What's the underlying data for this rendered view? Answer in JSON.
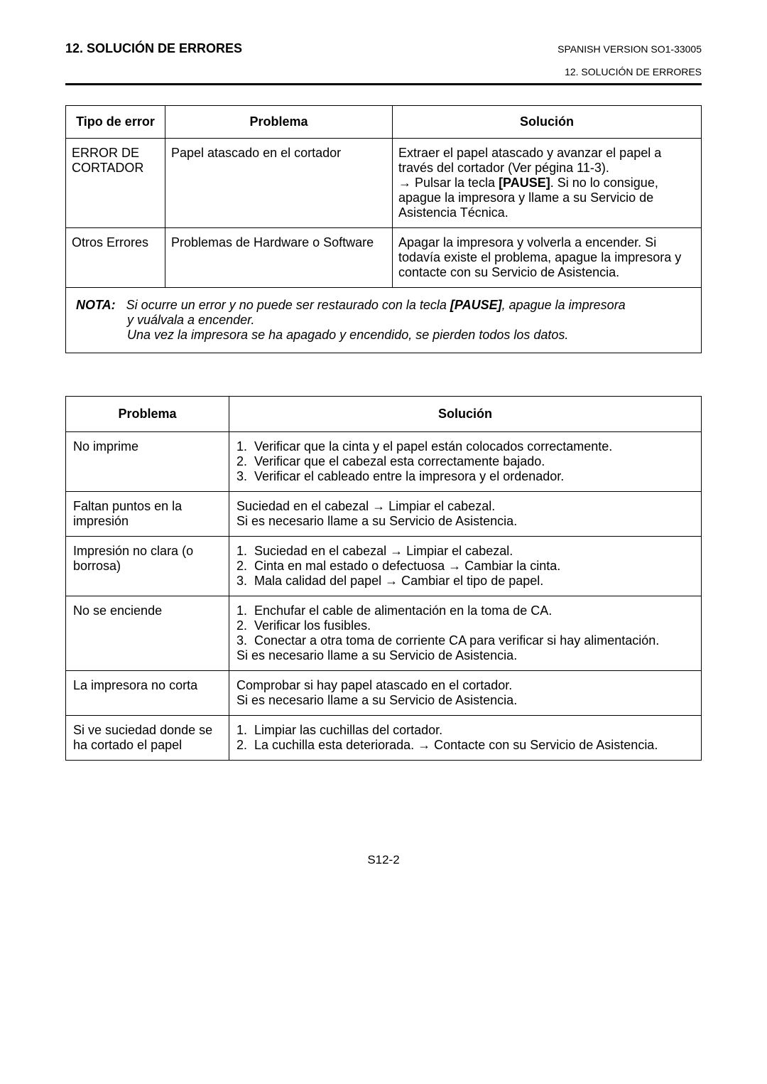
{
  "header": {
    "left": "12. SOLUCIÓN DE ERRORES",
    "rightTop": "SPANISH VERSION SO1-33005",
    "rightSub": "12. SOLUCIÓN DE ERRORES"
  },
  "table1": {
    "headers": {
      "type": "Tipo de error",
      "problem": "Problema",
      "solution": "Solución"
    },
    "rows": [
      {
        "type": "ERROR DE CORTADOR",
        "problem": "Papel atascado en el cortador",
        "solution_html": "Extraer el papel atascado y avanzar el papel a través del cortador (Ver pégina 11-3).<br>→ Pulsar la tecla <span class='bold-inline'>[PAUSE]</span>. Si no lo consigue, apague la impresora y llame a su Servicio de Asistencia Técnica."
      },
      {
        "type": "Otros Errores",
        "problem": "Problemas de Hardware o Software",
        "solution_html": "Apagar la impresora y volverla a encender. Si todavía existe el problema, apague la impresora y contacte con su Servicio de Asistencia."
      }
    ]
  },
  "note": {
    "label": "NOTA:",
    "line1_html": "Si ocurre un error y no puede ser restaurado con la tecla <span class='bold-inline'>[PAUSE]</span>, apague la impresora",
    "line2": "y vuálvala a encender.",
    "line3": "Una vez la impresora se ha apagado y encendido, se pierden todos los datos."
  },
  "table2": {
    "headers": {
      "problem": "Problema",
      "solution": "Solución"
    },
    "rows": [
      {
        "problem": "No imprime",
        "solution_html": "1.&nbsp;&nbsp;Verificar que la cinta y el papel están colocados correctamente.<br>2.&nbsp;&nbsp;Verificar que el cabezal esta correctamente bajado.<br>3.&nbsp;&nbsp;Verificar el cableado entre la impresora y el ordenador."
      },
      {
        "problem_html": "Faltan puntos en la impresión",
        "problem_justify": true,
        "solution_html": "Suciedad en el cabezal → Limpiar el cabezal.<br>Si es necesario llame a su Servicio de Asistencia."
      },
      {
        "problem_html": "Impresión no clara (o borrosa)",
        "problem_justify": true,
        "solution_html": "1.&nbsp;&nbsp;Suciedad en el cabezal  →  Limpiar el cabezal.<br>2.&nbsp;&nbsp;Cinta en mal estado o defectuosa  →  Cambiar la cinta.<br>3.&nbsp;&nbsp;Mala calidad del papel  →  Cambiar el tipo de papel."
      },
      {
        "problem": "No se enciende",
        "solution_html": "1.&nbsp;&nbsp;Enchufar el cable de alimentación en la toma de CA.<br>2.&nbsp;&nbsp;Verificar los fusibles.<br>3.&nbsp;&nbsp;Conectar a otra toma de corriente CA para verificar si hay alimentación.<br>Si es necesario llame a su Servicio de Asistencia."
      },
      {
        "problem": "La impresora no corta",
        "solution_html": "Comprobar si hay papel atascado en el cortador.<br>Si es necesario llame a su Servicio de Asistencia."
      },
      {
        "problem_html": "Si ve suciedad donde se ha cortado el papel",
        "solution_html": "1.&nbsp;&nbsp;Limpiar las cuchillas del cortador.<br>2.&nbsp;&nbsp;La cuchilla esta deteriorada. → Contacte con su Servicio de Asistencia."
      }
    ]
  },
  "footer": "S12-2"
}
